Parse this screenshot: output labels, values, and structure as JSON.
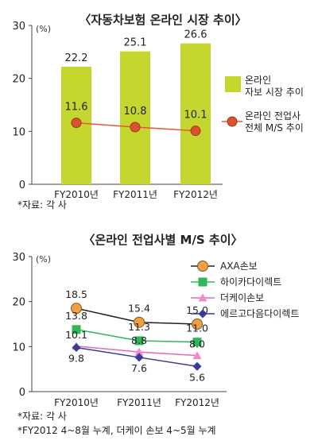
{
  "chart_data": [
    {
      "type": "bar+line",
      "title": "〈자동차보험 온라인 시장 추이〉",
      "yunit": "(%)",
      "ylim": [
        0,
        30
      ],
      "yticks": [
        0,
        10,
        20,
        30
      ],
      "categories": [
        "FY2010년",
        "FY2011년",
        "FY2012년"
      ],
      "series": [
        {
          "name": "온라인 자보 시장 추이",
          "name_lines": [
            "온라인",
            "자보 시장 추이"
          ],
          "kind": "bar",
          "color": "#c5d62e",
          "values": [
            22.2,
            25.1,
            26.6
          ],
          "labels": [
            "22.2",
            "25.1",
            "26.6"
          ]
        },
        {
          "name": "온라인 전업사 전체 M/S 추이",
          "name_lines": [
            "온라인 전업사",
            "전체 M/S 추이"
          ],
          "kind": "line",
          "color": "#e05a3c",
          "marker": "circle",
          "values": [
            11.6,
            10.8,
            10.1
          ],
          "labels": [
            "11.6",
            "10.8",
            "10.1"
          ]
        }
      ],
      "grid": false,
      "legend": "right",
      "source": "*자료: 각 사"
    },
    {
      "type": "line",
      "title": "〈온라인 전업사별 M/S 추이〉",
      "yunit": "(%)",
      "ylim": [
        0,
        30
      ],
      "yticks": [
        0,
        10,
        20,
        30
      ],
      "categories": [
        "FY2010년",
        "FY2011년",
        "FY2012년"
      ],
      "series": [
        {
          "name": "AXA손보",
          "color": "#e8942e",
          "marker": "circle",
          "values": [
            18.5,
            15.4,
            15.0
          ],
          "labels": [
            "18.5",
            "15.4",
            "15.0"
          ]
        },
        {
          "name": "하이카다이렉트",
          "color": "#2fb55a",
          "marker": "square",
          "values": [
            13.8,
            11.3,
            11.0
          ],
          "labels": [
            "13.8",
            "11.3",
            "11.0"
          ]
        },
        {
          "name": "더케이손보",
          "color": "#e868b4",
          "marker": "triangle",
          "values": [
            10.1,
            8.8,
            8.0
          ],
          "labels": [
            "10.1",
            "8.8",
            "8.0"
          ]
        },
        {
          "name": "에르고다음다이렉트",
          "color": "#3a3a9a",
          "marker": "diamond",
          "values": [
            9.8,
            7.6,
            5.6
          ],
          "labels": [
            "9.8",
            "7.6",
            "5.6"
          ]
        }
      ],
      "grid": false,
      "legend": "top-right",
      "source": "*자료: 각 사",
      "note": "*FY2012 4~8월 누계, 더케이 손보 4~5월 누계"
    }
  ]
}
